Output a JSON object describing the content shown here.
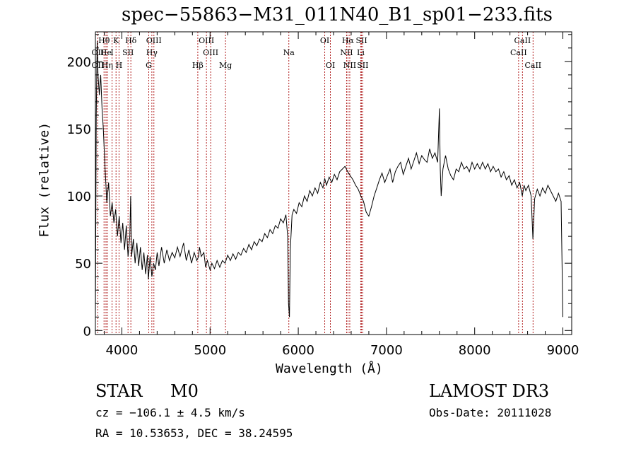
{
  "chart_data": {
    "type": "line",
    "title": "spec−55863−M31_011N40_B1_sp01−233.fits",
    "xlabel": "Wavelength (Å)",
    "ylabel": "Flux (relative)",
    "xlim": [
      3700,
      9100
    ],
    "ylim": [
      -3,
      222
    ],
    "x_ticks": [
      4000,
      5000,
      6000,
      7000,
      8000,
      9000
    ],
    "x_tick_labels": [
      "4000",
      "5000",
      "6000",
      "7000",
      "8000",
      "9000"
    ],
    "y_ticks": [
      0,
      50,
      100,
      150,
      200
    ],
    "y_tick_labels": [
      "0",
      "50",
      "100",
      "150",
      "200"
    ],
    "grid": false,
    "series": [
      {
        "name": "flux",
        "color": "#000000",
        "points": [
          [
            3700,
            10
          ],
          [
            3710,
            160
          ],
          [
            3720,
            215
          ],
          [
            3730,
            190
          ],
          [
            3745,
            175
          ],
          [
            3760,
            190
          ],
          [
            3775,
            165
          ],
          [
            3790,
            150
          ],
          [
            3810,
            120
          ],
          [
            3830,
            95
          ],
          [
            3850,
            110
          ],
          [
            3870,
            85
          ],
          [
            3890,
            95
          ],
          [
            3910,
            80
          ],
          [
            3930,
            90
          ],
          [
            3950,
            70
          ],
          [
            3970,
            85
          ],
          [
            3990,
            65
          ],
          [
            4010,
            80
          ],
          [
            4030,
            60
          ],
          [
            4050,
            78
          ],
          [
            4070,
            55
          ],
          [
            4090,
            70
          ],
          [
            4100,
            100
          ],
          [
            4110,
            55
          ],
          [
            4130,
            68
          ],
          [
            4150,
            50
          ],
          [
            4170,
            65
          ],
          [
            4190,
            48
          ],
          [
            4210,
            62
          ],
          [
            4230,
            45
          ],
          [
            4250,
            58
          ],
          [
            4270,
            42
          ],
          [
            4290,
            56
          ],
          [
            4300,
            38
          ],
          [
            4320,
            55
          ],
          [
            4340,
            40
          ],
          [
            4360,
            50
          ],
          [
            4380,
            45
          ],
          [
            4400,
            58
          ],
          [
            4420,
            48
          ],
          [
            4450,
            62
          ],
          [
            4480,
            50
          ],
          [
            4510,
            60
          ],
          [
            4540,
            52
          ],
          [
            4570,
            58
          ],
          [
            4600,
            54
          ],
          [
            4630,
            62
          ],
          [
            4660,
            55
          ],
          [
            4700,
            65
          ],
          [
            4730,
            52
          ],
          [
            4760,
            60
          ],
          [
            4790,
            50
          ],
          [
            4820,
            58
          ],
          [
            4850,
            52
          ],
          [
            4870,
            55
          ],
          [
            4880,
            62
          ],
          [
            4900,
            55
          ],
          [
            4930,
            58
          ],
          [
            4950,
            47
          ],
          [
            4970,
            52
          ],
          [
            5000,
            45
          ],
          [
            5020,
            50
          ],
          [
            5050,
            46
          ],
          [
            5080,
            52
          ],
          [
            5110,
            47
          ],
          [
            5140,
            52
          ],
          [
            5170,
            50
          ],
          [
            5200,
            56
          ],
          [
            5230,
            52
          ],
          [
            5260,
            57
          ],
          [
            5290,
            53
          ],
          [
            5320,
            58
          ],
          [
            5350,
            56
          ],
          [
            5380,
            61
          ],
          [
            5410,
            58
          ],
          [
            5440,
            64
          ],
          [
            5470,
            60
          ],
          [
            5500,
            66
          ],
          [
            5530,
            63
          ],
          [
            5560,
            68
          ],
          [
            5590,
            66
          ],
          [
            5620,
            72
          ],
          [
            5650,
            69
          ],
          [
            5680,
            75
          ],
          [
            5710,
            72
          ],
          [
            5740,
            78
          ],
          [
            5770,
            76
          ],
          [
            5800,
            83
          ],
          [
            5830,
            80
          ],
          [
            5860,
            86
          ],
          [
            5880,
            70
          ],
          [
            5890,
            20
          ],
          [
            5900,
            10
          ],
          [
            5910,
            60
          ],
          [
            5930,
            86
          ],
          [
            5950,
            90
          ],
          [
            5980,
            87
          ],
          [
            6010,
            95
          ],
          [
            6040,
            92
          ],
          [
            6070,
            100
          ],
          [
            6100,
            96
          ],
          [
            6130,
            104
          ],
          [
            6160,
            100
          ],
          [
            6190,
            106
          ],
          [
            6220,
            102
          ],
          [
            6250,
            110
          ],
          [
            6280,
            106
          ],
          [
            6300,
            113
          ],
          [
            6320,
            108
          ],
          [
            6350,
            114
          ],
          [
            6380,
            110
          ],
          [
            6410,
            116
          ],
          [
            6440,
            112
          ],
          [
            6470,
            118
          ],
          [
            6500,
            120
          ],
          [
            6530,
            122
          ],
          [
            6560,
            118
          ],
          [
            6590,
            115
          ],
          [
            6620,
            112
          ],
          [
            6650,
            108
          ],
          [
            6680,
            105
          ],
          [
            6710,
            100
          ],
          [
            6740,
            96
          ],
          [
            6770,
            88
          ],
          [
            6800,
            85
          ],
          [
            6830,
            92
          ],
          [
            6860,
            100
          ],
          [
            6890,
            106
          ],
          [
            6920,
            112
          ],
          [
            6950,
            117
          ],
          [
            6980,
            110
          ],
          [
            7010,
            115
          ],
          [
            7040,
            120
          ],
          [
            7070,
            110
          ],
          [
            7100,
            118
          ],
          [
            7130,
            122
          ],
          [
            7160,
            125
          ],
          [
            7190,
            116
          ],
          [
            7220,
            122
          ],
          [
            7250,
            128
          ],
          [
            7280,
            120
          ],
          [
            7310,
            126
          ],
          [
            7340,
            132
          ],
          [
            7370,
            124
          ],
          [
            7400,
            130
          ],
          [
            7430,
            127
          ],
          [
            7460,
            125
          ],
          [
            7490,
            135
          ],
          [
            7520,
            128
          ],
          [
            7550,
            132
          ],
          [
            7580,
            125
          ],
          [
            7600,
            165
          ],
          [
            7610,
            120
          ],
          [
            7620,
            100
          ],
          [
            7640,
            120
          ],
          [
            7670,
            130
          ],
          [
            7700,
            120
          ],
          [
            7730,
            115
          ],
          [
            7760,
            112
          ],
          [
            7790,
            120
          ],
          [
            7820,
            118
          ],
          [
            7850,
            125
          ],
          [
            7880,
            120
          ],
          [
            7910,
            122
          ],
          [
            7940,
            118
          ],
          [
            7970,
            125
          ],
          [
            8000,
            120
          ],
          [
            8030,
            124
          ],
          [
            8060,
            120
          ],
          [
            8090,
            125
          ],
          [
            8120,
            120
          ],
          [
            8150,
            124
          ],
          [
            8180,
            118
          ],
          [
            8210,
            122
          ],
          [
            8240,
            118
          ],
          [
            8270,
            120
          ],
          [
            8300,
            114
          ],
          [
            8330,
            118
          ],
          [
            8360,
            112
          ],
          [
            8390,
            115
          ],
          [
            8420,
            108
          ],
          [
            8450,
            112
          ],
          [
            8480,
            106
          ],
          [
            8510,
            110
          ],
          [
            8540,
            100
          ],
          [
            8560,
            108
          ],
          [
            8580,
            104
          ],
          [
            8610,
            108
          ],
          [
            8640,
            100
          ],
          [
            8660,
            68
          ],
          [
            8680,
            98
          ],
          [
            8710,
            105
          ],
          [
            8740,
            100
          ],
          [
            8770,
            106
          ],
          [
            8800,
            102
          ],
          [
            8830,
            108
          ],
          [
            8860,
            104
          ],
          [
            8890,
            100
          ],
          [
            8920,
            96
          ],
          [
            8950,
            102
          ],
          [
            8980,
            96
          ],
          [
            9000,
            10
          ]
        ]
      }
    ],
    "line_markers": [
      {
        "label": "Hθ",
        "x": 3798,
        "row": 1
      },
      {
        "label": "OII",
        "x": 3727,
        "row": 2
      },
      {
        "label": "OII",
        "x": 3727,
        "row": 3
      },
      {
        "label": "He",
        "x": 3820,
        "row": 2
      },
      {
        "label": "Hη",
        "x": 3835,
        "row": 3
      },
      {
        "label": "K",
        "x": 3934,
        "row": 1
      },
      {
        "label": "H",
        "x": 3968,
        "row": 3
      },
      {
        "label": "I",
        "x": 3889,
        "row": 2
      },
      {
        "label": "SII",
        "x": 4070,
        "row": 2
      },
      {
        "label": "Hδ",
        "x": 4102,
        "row": 1
      },
      {
        "label": "OIII",
        "x": 4363,
        "row": 1
      },
      {
        "label": "Hγ",
        "x": 4340,
        "row": 2
      },
      {
        "label": "G",
        "x": 4305,
        "row": 3
      },
      {
        "label": "OIII",
        "x": 4959,
        "row": 1
      },
      {
        "label": "OIII",
        "x": 5007,
        "row": 2
      },
      {
        "label": "Hβ",
        "x": 4861,
        "row": 3
      },
      {
        "label": "Mg",
        "x": 5175,
        "row": 3
      },
      {
        "label": "Na",
        "x": 5893,
        "row": 2
      },
      {
        "label": "OI",
        "x": 6300,
        "row": 1
      },
      {
        "label": "OI",
        "x": 6364,
        "row": 3
      },
      {
        "label": "Hα",
        "x": 6563,
        "row": 1
      },
      {
        "label": "SII",
        "x": 6717,
        "row": 1
      },
      {
        "label": "NII",
        "x": 6548,
        "row": 2
      },
      {
        "label": "Li",
        "x": 6708,
        "row": 2
      },
      {
        "label": "NII",
        "x": 6584,
        "row": 3
      },
      {
        "label": "SII",
        "x": 6731,
        "row": 3
      },
      {
        "label": "CaII",
        "x": 8542,
        "row": 1
      },
      {
        "label": "CaII",
        "x": 8498,
        "row": 2
      },
      {
        "label": "CaII",
        "x": 8662,
        "row": 3
      }
    ]
  },
  "info": {
    "class": "STAR",
    "subclass": "M0",
    "survey": "LAMOST DR3",
    "cz": "cz = −106.1 ± 4.5 km/s",
    "obs_date": "Obs-Date: 20111028",
    "radec": "RA =  10.53653, DEC =  38.24595"
  },
  "colors": {
    "marker_line": "#b22222",
    "flux_line": "#000000"
  }
}
